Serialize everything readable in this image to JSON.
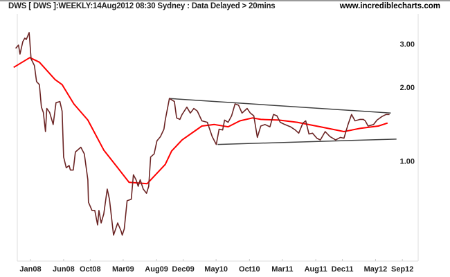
{
  "header": {
    "title": "DWS [ DWS ]:WEEKLY:14Aug2012 08:30 Sydney : Data Delayed > 20mins",
    "site": "www.incrediblecharts.com"
  },
  "chart_data": {
    "type": "line",
    "title": "",
    "xlabel": "",
    "ylabel": "",
    "y_scale": "log",
    "grid": false,
    "legend": "none",
    "y_ticks": [
      {
        "value": 3.0,
        "label": "3.00"
      },
      {
        "value": 2.0,
        "label": "2.00"
      },
      {
        "value": 1.0,
        "label": "1.00"
      }
    ],
    "x_ticks": [
      {
        "date": "2008-01-01",
        "label": "Jan08"
      },
      {
        "date": "2008-06-01",
        "label": "Jun08"
      },
      {
        "date": "2008-10-01",
        "label": "Oct08"
      },
      {
        "date": "2009-03-01",
        "label": "Mar09"
      },
      {
        "date": "2009-08-01",
        "label": "Aug09"
      },
      {
        "date": "2009-12-01",
        "label": "Dec09"
      },
      {
        "date": "2010-05-01",
        "label": "May10"
      },
      {
        "date": "2010-10-01",
        "label": "Oct10"
      },
      {
        "date": "2011-03-01",
        "label": "Mar11"
      },
      {
        "date": "2011-08-01",
        "label": "Aug11"
      },
      {
        "date": "2011-12-01",
        "label": "Dec11"
      },
      {
        "date": "2012-05-01",
        "label": "May12"
      },
      {
        "date": "2012-09-01",
        "label": "Sep12"
      }
    ],
    "series": [
      {
        "color": "#6b2424",
        "x": [
          "2007-10-25",
          "2007-11-07",
          "2007-11-14",
          "2007-11-27",
          "2007-12-06",
          "2007-12-13",
          "2007-12-26",
          "2007-12-29",
          "2008-01-04",
          "2008-01-19",
          "2008-01-29",
          "2008-02-11",
          "2008-02-20",
          "2008-02-29",
          "2008-03-10",
          "2008-03-16",
          "2008-03-29",
          "2008-04-14",
          "2008-04-27",
          "2008-05-15",
          "2008-05-25",
          "2008-06-01",
          "2008-06-13",
          "2008-06-26",
          "2008-07-02",
          "2008-07-15",
          "2008-07-25",
          "2008-08-19",
          "2008-09-04",
          "2008-09-20",
          "2008-09-23",
          "2008-10-09",
          "2008-10-22",
          "2008-11-04",
          "2008-11-10",
          "2008-11-20",
          "2008-12-02",
          "2008-12-18",
          "2008-12-28",
          "2009-01-16",
          "2009-02-04",
          "2009-02-19",
          "2009-02-25",
          "2009-03-06",
          "2009-03-19",
          "2009-04-07",
          "2009-04-17",
          "2009-04-29",
          "2009-05-09",
          "2009-05-18",
          "2009-06-01",
          "2009-06-16",
          "2009-06-26",
          "2009-07-05",
          "2009-07-21",
          "2009-08-03",
          "2009-08-19",
          "2009-09-04",
          "2009-09-10",
          "2009-09-29",
          "2009-10-22",
          "2009-11-01",
          "2009-11-16",
          "2009-11-26",
          "2009-12-18",
          "2010-01-03",
          "2010-01-19",
          "2010-02-04",
          "2010-02-25",
          "2010-03-22",
          "2010-04-13",
          "2010-05-02",
          "2010-05-15",
          "2010-05-31",
          "2010-06-09",
          "2010-06-25",
          "2010-07-11",
          "2010-07-27",
          "2010-08-12",
          "2010-08-28",
          "2010-09-20",
          "2010-10-05",
          "2010-10-21",
          "2010-11-06",
          "2010-11-22",
          "2010-12-11",
          "2011-01-03",
          "2011-01-19",
          "2011-02-04",
          "2011-02-19",
          "2011-03-12",
          "2011-04-07",
          "2011-04-29",
          "2011-05-15",
          "2011-06-03",
          "2011-06-16",
          "2011-07-01",
          "2011-07-17",
          "2011-08-06",
          "2011-08-22",
          "2011-09-13",
          "2011-10-05",
          "2011-10-31",
          "2011-11-22",
          "2011-12-08",
          "2011-12-27",
          "2012-01-12",
          "2012-01-28",
          "2012-02-20",
          "2012-03-06",
          "2012-03-15",
          "2012-03-28",
          "2012-04-22",
          "2012-05-08",
          "2012-05-30",
          "2012-06-18",
          "2012-07-04"
        ],
        "values": [
          2.88,
          2.97,
          2.73,
          3.07,
          3.17,
          3.13,
          3.34,
          3.07,
          2.61,
          2.45,
          2.11,
          2.05,
          1.66,
          1.58,
          1.32,
          1.64,
          1.58,
          1.41,
          1.73,
          1.75,
          1.6,
          1.04,
          0.94,
          0.96,
          0.92,
          0.92,
          1.09,
          1.14,
          1.07,
          0.84,
          0.68,
          0.63,
          0.63,
          0.55,
          0.63,
          0.56,
          0.61,
          0.77,
          0.7,
          0.5,
          0.56,
          0.52,
          0.5,
          0.53,
          0.69,
          0.7,
          0.88,
          0.84,
          0.79,
          0.84,
          0.77,
          0.74,
          0.79,
          1.04,
          1.07,
          1.21,
          1.26,
          1.35,
          1.47,
          1.8,
          1.75,
          1.5,
          1.48,
          1.55,
          1.66,
          1.57,
          1.64,
          1.6,
          1.46,
          1.44,
          1.26,
          1.17,
          1.35,
          1.34,
          1.47,
          1.44,
          1.53,
          1.71,
          1.69,
          1.57,
          1.64,
          1.57,
          1.53,
          1.25,
          1.39,
          1.41,
          1.38,
          1.55,
          1.53,
          1.44,
          1.41,
          1.38,
          1.34,
          1.3,
          1.43,
          1.46,
          1.29,
          1.3,
          1.24,
          1.22,
          1.32,
          1.26,
          1.22,
          1.25,
          1.24,
          1.41,
          1.55,
          1.46,
          1.48,
          1.48,
          1.46,
          1.39,
          1.41,
          1.47,
          1.52,
          1.55,
          1.55
        ]
      },
      {
        "color": "#ff0000",
        "x": [
          "2007-10-16",
          "2007-12-29",
          "2008-02-11",
          "2008-04-23",
          "2008-05-25",
          "2008-07-18",
          "2008-09-20",
          "2008-12-02",
          "2009-02-04",
          "2009-03-28",
          "2009-06-19",
          "2009-09-10",
          "2009-10-09",
          "2009-11-26",
          "2010-02-25",
          "2010-04-23",
          "2010-06-25",
          "2010-08-18",
          "2010-10-15",
          "2010-11-22",
          "2011-02-13",
          "2011-05-08",
          "2011-08-22",
          "2011-12-08",
          "2012-02-20",
          "2012-05-14",
          "2012-06-25"
        ],
        "values": [
          2.41,
          2.64,
          2.53,
          2.15,
          2.05,
          1.71,
          1.47,
          1.11,
          0.94,
          0.82,
          0.81,
          0.97,
          1.1,
          1.22,
          1.39,
          1.41,
          1.38,
          1.46,
          1.5,
          1.48,
          1.47,
          1.44,
          1.38,
          1.32,
          1.36,
          1.39,
          1.43
        ]
      }
    ],
    "trendlines": [
      {
        "color": "#404040",
        "x": [
          "2009-09-29",
          "2012-07-10"
        ],
        "values": [
          1.8,
          1.57
        ]
      },
      {
        "color": "#404040",
        "x": [
          "2010-05-08",
          "2012-08-05"
        ],
        "values": [
          1.17,
          1.23
        ]
      }
    ]
  }
}
